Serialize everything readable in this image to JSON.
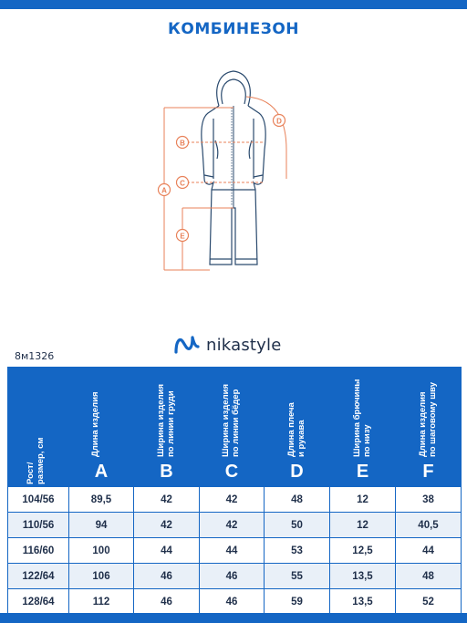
{
  "title": "КОМБИНЕЗОН",
  "brand": {
    "name": "nikastyle"
  },
  "article": "8м1326",
  "measure_labels": [
    "A",
    "B",
    "C",
    "D",
    "E"
  ],
  "table": {
    "columns": [
      {
        "label": "Рост/\nразмер, см",
        "letter": ""
      },
      {
        "label": "Длина изделия",
        "letter": "A"
      },
      {
        "label": "Ширина изделия\nпо линии груди",
        "letter": "B"
      },
      {
        "label": "Ширина изделия\nпо линии бёдер",
        "letter": "C"
      },
      {
        "label": "Длина плеча\nи рукава",
        "letter": "D"
      },
      {
        "label": "Ширина брючины\nпо низу",
        "letter": "E"
      },
      {
        "label": "Длина изделия\nпо шаговому шву",
        "letter": "F"
      }
    ],
    "rows": [
      [
        "104/56",
        "89,5",
        "42",
        "42",
        "48",
        "12",
        "38"
      ],
      [
        "110/56",
        "94",
        "42",
        "42",
        "50",
        "12",
        "40,5"
      ],
      [
        "116/60",
        "100",
        "44",
        "44",
        "53",
        "12,5",
        "44"
      ],
      [
        "122/64",
        "106",
        "46",
        "46",
        "55",
        "13,5",
        "48"
      ],
      [
        "128/64",
        "112",
        "46",
        "46",
        "59",
        "13,5",
        "52"
      ]
    ]
  },
  "colors": {
    "brand_blue": "#1466c4",
    "measure_orange": "#e8825a",
    "garment_line": "#1f4e79"
  }
}
